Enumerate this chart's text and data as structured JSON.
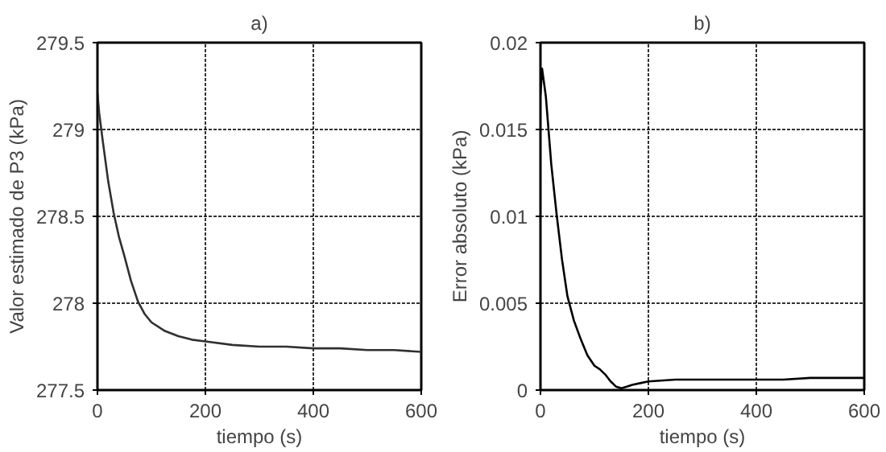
{
  "chart_data": [
    {
      "type": "line",
      "title": "a)",
      "xlabel": "tiempo (s)",
      "ylabel": "Valor estimado de P3 (kPa)",
      "xlim": [
        0,
        600
      ],
      "xticks": [
        0,
        200,
        400,
        600
      ],
      "ylim": [
        277.5,
        279.5
      ],
      "yticks": [
        277.5,
        278,
        278.5,
        279,
        279.5
      ],
      "grid": true,
      "line_style": "solid",
      "series": [
        {
          "color": "#303030",
          "x": [
            0,
            3,
            10,
            20,
            30,
            40,
            50,
            62,
            75,
            87,
            100,
            125,
            150,
            175,
            200,
            250,
            300,
            350,
            400,
            450,
            500,
            550,
            600
          ],
          "values": [
            279.21,
            279.1,
            278.93,
            278.7,
            278.52,
            278.38,
            278.27,
            278.13,
            278.01,
            277.94,
            277.89,
            277.84,
            277.81,
            277.79,
            277.78,
            277.76,
            277.75,
            277.75,
            277.74,
            277.74,
            277.73,
            277.73,
            277.72
          ]
        }
      ]
    },
    {
      "type": "line",
      "title": "b)",
      "xlabel": "tiempo (s)",
      "ylabel": "Error absoluto (kPa)",
      "xlim": [
        0,
        600
      ],
      "xticks": [
        0,
        200,
        400,
        600
      ],
      "ylim": [
        0,
        0.02
      ],
      "yticks": [
        0,
        0.005,
        0.01,
        0.015,
        0.02
      ],
      "grid": true,
      "line_style": "solid",
      "series": [
        {
          "color": "#000000",
          "x": [
            0,
            3,
            10,
            20,
            30,
            40,
            50,
            62,
            75,
            87,
            100,
            110,
            120,
            130,
            140,
            150,
            160,
            170,
            185,
            200,
            250,
            300,
            350,
            400,
            450,
            500,
            550,
            600
          ],
          "values": [
            0.017,
            0.0185,
            0.0169,
            0.013,
            0.0101,
            0.0075,
            0.0054,
            0.004,
            0.0029,
            0.002,
            0.0014,
            0.0012,
            0.0009,
            0.0005,
            0.0002,
            0.0001,
            0.0002,
            0.0003,
            0.0004,
            0.0005,
            0.0006,
            0.0006,
            0.0006,
            0.0006,
            0.0006,
            0.0007,
            0.0007,
            0.0007
          ]
        }
      ]
    }
  ]
}
